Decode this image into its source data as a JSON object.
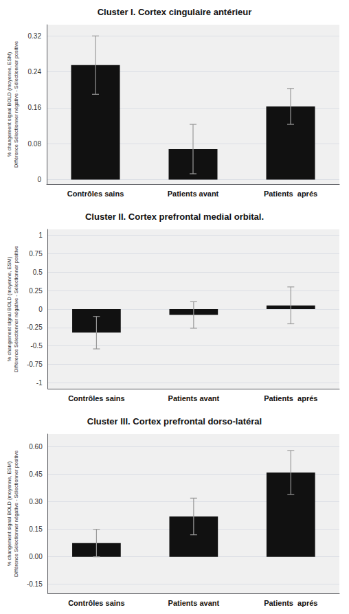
{
  "chart_data": [
    {
      "type": "bar",
      "title": "Cluster I. Cortex cingulaire antérieur",
      "ylabel": "% changement signal BOLD (moyenne, ESM)\nDifférence Sélectionner négative - Sélectionner positive",
      "categories": [
        "Contrôles sains",
        "Patients avant",
        "Patients  aprés"
      ],
      "values": [
        0.255,
        0.068,
        0.163
      ],
      "errors": [
        0.065,
        0.055,
        0.04
      ],
      "color": "#111111",
      "ylim": [
        -0.01,
        0.345
      ],
      "yticks": [
        0,
        0.08,
        0.16,
        0.24,
        0.32
      ],
      "grid": true
    },
    {
      "type": "bar",
      "title": "Cluster II. Cortex prefrontal medial orbital.",
      "ylabel": "% changement signal BOLD (moyenne, ESM)\nDifférence Sélectionner négative - Sélectionner positive",
      "categories": [
        "Contrôles sains",
        "Patients avant",
        "Patients  aprés"
      ],
      "values": [
        -0.32,
        -0.08,
        0.05
      ],
      "errors": [
        0.22,
        0.18,
        0.25
      ],
      "color": "#111111",
      "ylim": [
        -1.08,
        1.08
      ],
      "yticks": [
        -1,
        -0.75,
        -0.5,
        -0.25,
        0,
        0.25,
        0.5,
        0.75,
        1
      ],
      "grid": true
    },
    {
      "type": "bar",
      "title": "Cluster III. Cortex prefrontal dorso-latéral",
      "ylabel": "% changement signal BOLD (moyenne, ESM)\nDifférence Sélectionner négative - Sélectionner positive",
      "categories": [
        "Contrôles sains",
        "Patients avant",
        "Patients  aprés"
      ],
      "values": [
        0.075,
        0.22,
        0.46
      ],
      "errors": [
        0.075,
        0.1,
        0.12
      ],
      "color": "#111111",
      "ylim": [
        -0.2,
        0.67
      ],
      "yticks": [
        -0.15,
        {
          "value": 0,
          "label": "0.00"
        },
        0.15,
        {
          "value": 0.3,
          "label": "0.30"
        },
        0.45,
        {
          "value": 0.6,
          "label": "0.60"
        }
      ],
      "grid": true
    }
  ]
}
